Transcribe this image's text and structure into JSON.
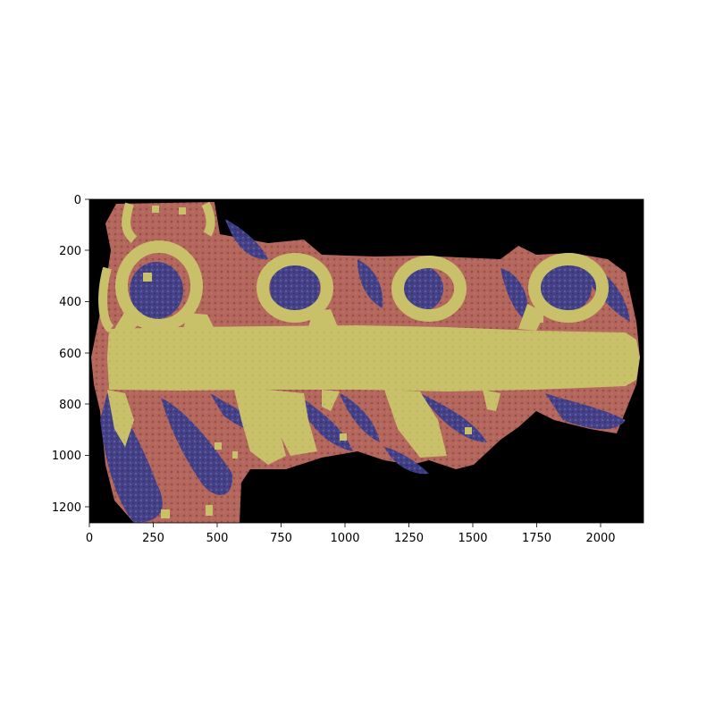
{
  "image_content": {
    "description_colors": {
      "background": "#000000",
      "class_yellow": "#c9c06a",
      "class_red": "#b3675d",
      "class_blue": "#3f3f8a"
    }
  },
  "axes": {
    "x_ticks": [
      "0",
      "250",
      "500",
      "750",
      "1000",
      "1250",
      "1500",
      "1750",
      "2000"
    ],
    "y_ticks": [
      "0",
      "200",
      "400",
      "600",
      "800",
      "1000",
      "1200"
    ],
    "xlim": [
      0,
      2168
    ],
    "ylim": [
      1268,
      0
    ]
  }
}
